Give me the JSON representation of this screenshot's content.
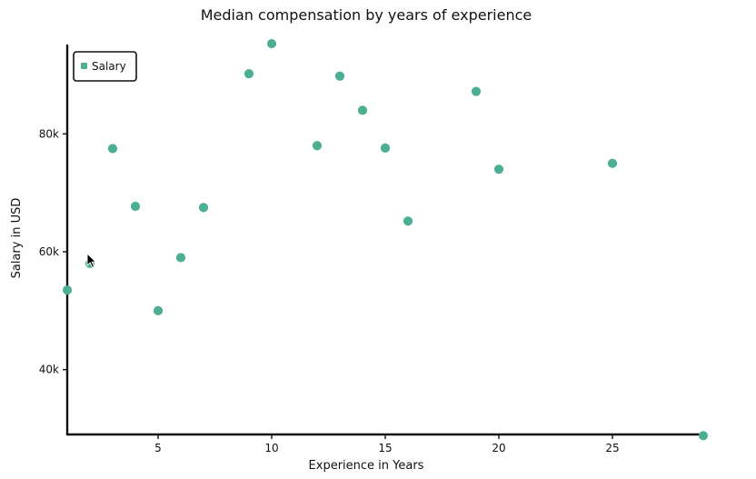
{
  "chart_data": {
    "type": "scatter",
    "title": "Median compensation by years of experience",
    "xlabel": "Experience in Years",
    "ylabel": "Salary in USD",
    "xlim": [
      1,
      29
    ],
    "ylim": [
      29000,
      95000
    ],
    "x_ticks": [
      5,
      10,
      15,
      20,
      25
    ],
    "x_tick_labels": [
      "5",
      "10",
      "15",
      "20",
      "25"
    ],
    "y_ticks": [
      40000,
      60000,
      80000
    ],
    "y_tick_labels": [
      "40k",
      "60k",
      "80k"
    ],
    "grid": false,
    "legend": "top-left",
    "series": [
      {
        "name": "Salary",
        "color": "#4caf93",
        "points": [
          {
            "x": 1,
            "y": 53500
          },
          {
            "x": 2,
            "y": 58000
          },
          {
            "x": 3,
            "y": 77500
          },
          {
            "x": 4,
            "y": 67700
          },
          {
            "x": 5,
            "y": 50000
          },
          {
            "x": 6,
            "y": 59000
          },
          {
            "x": 7,
            "y": 67500
          },
          {
            "x": 9,
            "y": 90200
          },
          {
            "x": 10,
            "y": 95300
          },
          {
            "x": 12,
            "y": 78000
          },
          {
            "x": 13,
            "y": 89800
          },
          {
            "x": 14,
            "y": 84000
          },
          {
            "x": 15,
            "y": 77600
          },
          {
            "x": 16,
            "y": 65200
          },
          {
            "x": 19,
            "y": 87200
          },
          {
            "x": 20,
            "y": 74000
          },
          {
            "x": 25,
            "y": 75000
          },
          {
            "x": 29,
            "y": 28800
          }
        ]
      }
    ]
  },
  "cursor": {
    "icon": "mouse-pointer-icon"
  }
}
